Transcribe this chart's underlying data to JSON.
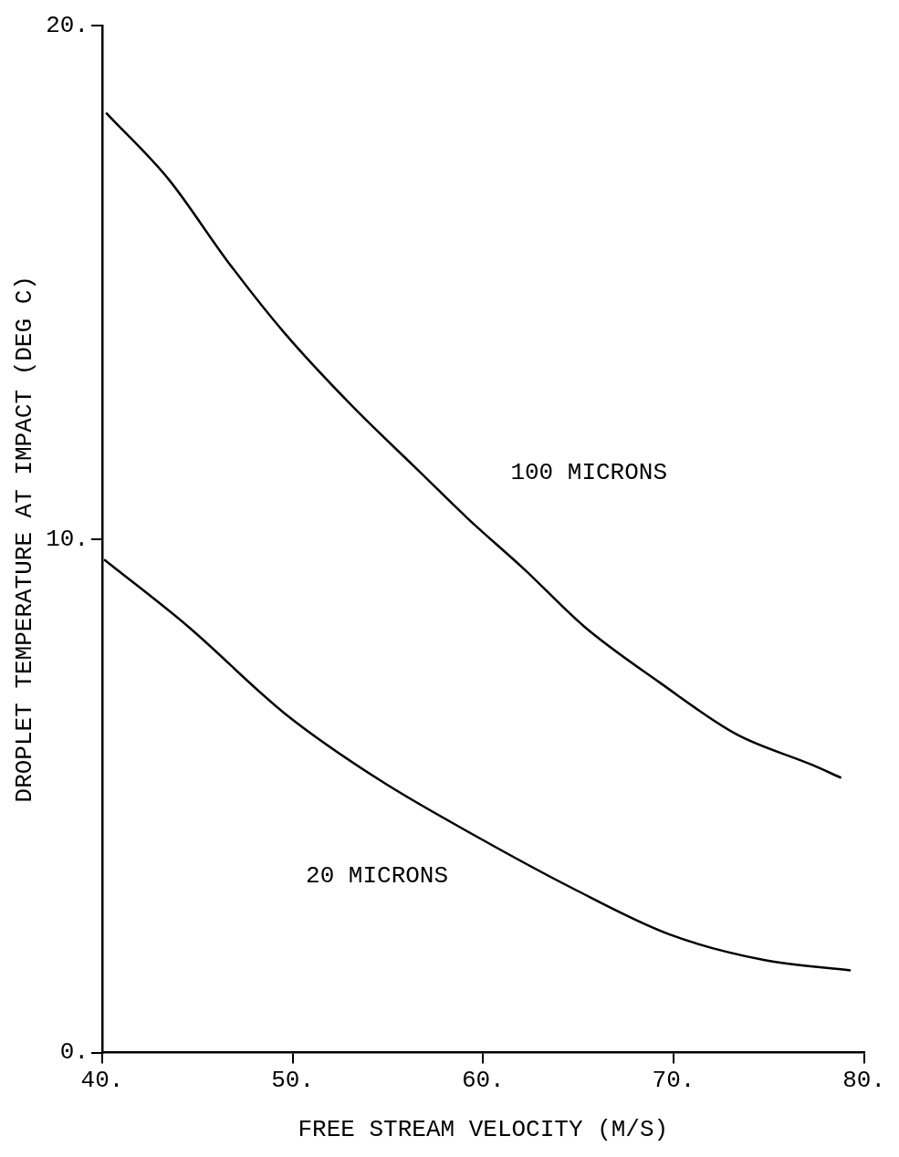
{
  "chart_data": {
    "type": "line",
    "xlabel": "FREE STREAM VELOCITY (M/S)",
    "ylabel": "DROPLET TEMPERATURE AT IMPACT (DEG C)",
    "xlim": [
      40,
      80
    ],
    "xticks": [
      {
        "value": 40,
        "label": "40."
      },
      {
        "value": 50,
        "label": "50."
      },
      {
        "value": 60,
        "label": "60."
      },
      {
        "value": 70,
        "label": "70."
      },
      {
        "value": 80,
        "label": "80."
      }
    ],
    "ylim": [
      0,
      20
    ],
    "yticks": [
      {
        "value": 0,
        "label": "0."
      },
      {
        "value": 10,
        "label": "10."
      },
      {
        "value": 20,
        "label": "20."
      }
    ],
    "grid": false,
    "legend": false,
    "marker": "none",
    "line_style": "solid",
    "series": [
      {
        "name": "100 MICRONS",
        "color": "#000000",
        "x": [
          40.2,
          43.5,
          46.6,
          49.6,
          53.1,
          56.7,
          59.2,
          62.2,
          65.3,
          69.3,
          73.3,
          77.3,
          78.8
        ],
        "values": [
          18.3,
          17.0,
          15.4,
          14.0,
          12.6,
          11.3,
          10.4,
          9.4,
          8.3,
          7.2,
          6.2,
          5.6,
          5.35
        ]
      },
      {
        "name": "20 MICRONS",
        "color": "#000000",
        "x": [
          40.1,
          44.5,
          49.6,
          54.6,
          59.7,
          64.7,
          69.8,
          74.8,
          79.3
        ],
        "values": [
          9.6,
          8.3,
          6.6,
          5.3,
          4.2,
          3.2,
          2.3,
          1.8,
          1.6
        ]
      }
    ]
  }
}
